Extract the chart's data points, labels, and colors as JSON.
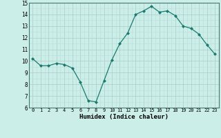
{
  "x": [
    0,
    1,
    2,
    3,
    4,
    5,
    6,
    7,
    8,
    9,
    10,
    11,
    12,
    13,
    14,
    15,
    16,
    17,
    18,
    19,
    20,
    21,
    22,
    23
  ],
  "y": [
    10.2,
    9.6,
    9.6,
    9.8,
    9.7,
    9.4,
    8.2,
    6.6,
    6.5,
    8.3,
    10.1,
    11.5,
    12.4,
    14.0,
    14.3,
    14.7,
    14.2,
    14.3,
    13.9,
    13.0,
    12.8,
    12.3,
    11.4,
    10.6
  ],
  "xlabel": "Humidex (Indice chaleur)",
  "ylim": [
    6,
    15
  ],
  "xlim": [
    -0.5,
    23.5
  ],
  "yticks": [
    6,
    7,
    8,
    9,
    10,
    11,
    12,
    13,
    14,
    15
  ],
  "xticks": [
    0,
    1,
    2,
    3,
    4,
    5,
    6,
    7,
    8,
    9,
    10,
    11,
    12,
    13,
    14,
    15,
    16,
    17,
    18,
    19,
    20,
    21,
    22,
    23
  ],
  "line_color": "#1a7a6e",
  "marker_color": "#1a7a6e",
  "bg_color": "#cceee8",
  "grid_minor_color": "#bbddda",
  "grid_major_color": "#aaccca",
  "spine_color": "#447770"
}
